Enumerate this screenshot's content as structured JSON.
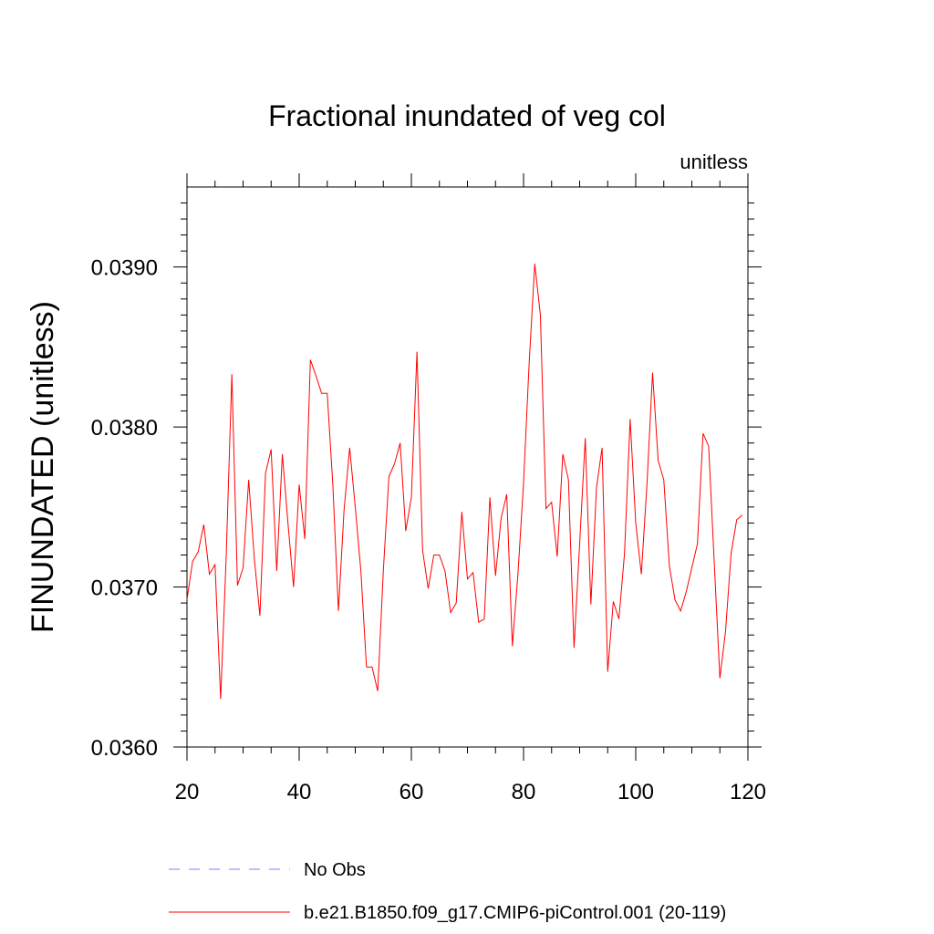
{
  "chart_data": {
    "type": "line",
    "title": "Fractional inundated of veg col",
    "units": "unitless",
    "ylabel": "FINUNDATED  (unitless)",
    "xlabel": "",
    "xlim": [
      20,
      120
    ],
    "ylim": [
      0.036,
      0.0395
    ],
    "xticks": [
      20,
      40,
      60,
      80,
      100,
      120
    ],
    "xtick_labels": [
      "20",
      "40",
      "60",
      "80",
      "100",
      "120"
    ],
    "yticks": [
      0.036,
      0.037,
      0.038,
      0.039
    ],
    "ytick_labels": [
      "0.0360",
      "0.0370",
      "0.0380",
      "0.0390"
    ],
    "grid": false,
    "legend_position": "bottom",
    "series": [
      {
        "name": "No Obs",
        "color": "#7f7fff",
        "style": "dashed",
        "x": [],
        "y": []
      },
      {
        "name": "b.e21.B1850.f09_g17.CMIP6-piControl.001 (20-119)",
        "color": "#ff0000",
        "style": "solid",
        "x": [
          20,
          21,
          22,
          23,
          24,
          25,
          26,
          27,
          28,
          29,
          30,
          31,
          32,
          33,
          34,
          35,
          36,
          37,
          38,
          39,
          40,
          41,
          42,
          43,
          44,
          45,
          46,
          47,
          48,
          49,
          50,
          51,
          52,
          53,
          54,
          55,
          56,
          57,
          58,
          59,
          60,
          61,
          62,
          63,
          64,
          65,
          66,
          67,
          68,
          69,
          70,
          71,
          72,
          73,
          74,
          75,
          76,
          77,
          78,
          79,
          80,
          81,
          82,
          83,
          84,
          85,
          86,
          87,
          88,
          89,
          90,
          91,
          92,
          93,
          94,
          95,
          96,
          97,
          98,
          99,
          100,
          101,
          102,
          103,
          104,
          105,
          106,
          107,
          108,
          109,
          110,
          111,
          112,
          113,
          114,
          115,
          116,
          117,
          118,
          119
        ],
        "y": [
          0.03692,
          0.03716,
          0.03722,
          0.03739,
          0.03708,
          0.03714,
          0.0363,
          0.0372,
          0.03833,
          0.03701,
          0.03712,
          0.03767,
          0.03718,
          0.03682,
          0.03771,
          0.03786,
          0.0371,
          0.03783,
          0.0374,
          0.037,
          0.03764,
          0.0373,
          0.03842,
          0.03832,
          0.03821,
          0.03821,
          0.03764,
          0.03685,
          0.03748,
          0.03787,
          0.0375,
          0.0371,
          0.0365,
          0.0365,
          0.03635,
          0.0371,
          0.03769,
          0.03777,
          0.0379,
          0.03735,
          0.03756,
          0.03847,
          0.03723,
          0.03699,
          0.0372,
          0.0372,
          0.0371,
          0.03684,
          0.0369,
          0.03747,
          0.03705,
          0.03709,
          0.03678,
          0.0368,
          0.03756,
          0.03707,
          0.03743,
          0.03758,
          0.03663,
          0.03708,
          0.03765,
          0.0384,
          0.03902,
          0.0387,
          0.03749,
          0.03753,
          0.03719,
          0.03783,
          0.03767,
          0.03662,
          0.03727,
          0.03793,
          0.03689,
          0.03762,
          0.03787,
          0.03647,
          0.03691,
          0.0368,
          0.03721,
          0.03805,
          0.0374,
          0.03708,
          0.03764,
          0.03834,
          0.03779,
          0.03767,
          0.03713,
          0.03692,
          0.03685,
          0.03697,
          0.03712,
          0.03727,
          0.03796,
          0.03788,
          0.03715,
          0.03643,
          0.03672,
          0.03721,
          0.03742,
          0.03745
        ]
      }
    ]
  }
}
